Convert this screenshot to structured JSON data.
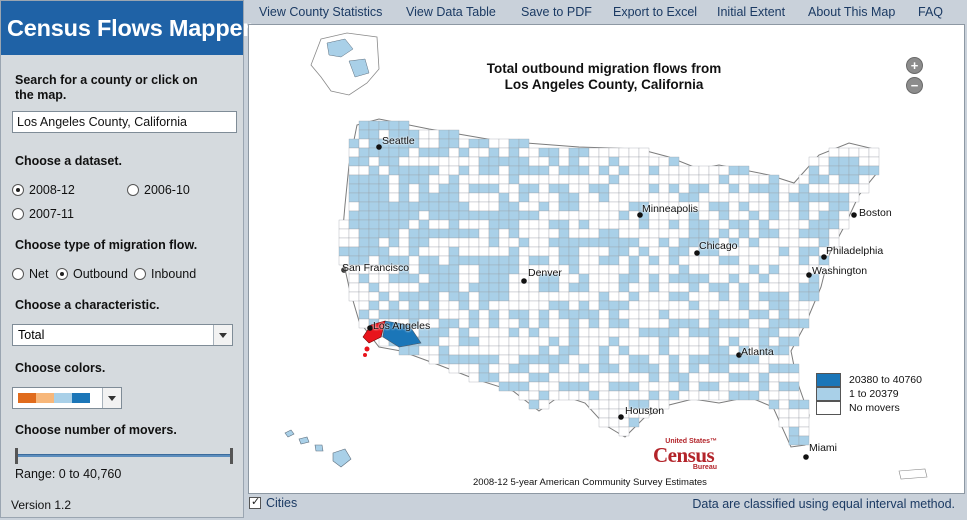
{
  "app": {
    "title": "Census Flows Mapper",
    "version": "Version 1.2"
  },
  "menu": [
    "View County Statistics",
    "View Data Table",
    "Save to PDF",
    "Export to Excel",
    "Initial Extent",
    "About This Map",
    "FAQ"
  ],
  "sidebar": {
    "search_label": "Search for a county or click on the map.",
    "search_value": "Los Angeles County, California",
    "dataset_label": "Choose a dataset.",
    "datasets": [
      "2008-12",
      "2006-10",
      "2007-11"
    ],
    "dataset_selected": "2008-12",
    "flow_label": "Choose type of migration flow.",
    "flows": [
      "Net",
      "Outbound",
      "Inbound"
    ],
    "flow_selected": "Outbound",
    "characteristic_label": "Choose a characteristic.",
    "characteristic_value": "Total",
    "colors_label": "Choose colors.",
    "color_swatches": [
      "#e06b1c",
      "#f7b77a",
      "#a9d0e8",
      "#1b76b8"
    ],
    "movers_label": "Choose number of movers.",
    "range_text": "Range: 0 to 40,760",
    "range": {
      "min": 0,
      "max": 40760
    }
  },
  "map": {
    "title_line1": "Total outbound migration flows from",
    "title_line2": "Los Angeles County, California",
    "zoom_in": "+",
    "zoom_out": "−",
    "cities": [
      "Seattle",
      "San Francisco",
      "Los Angeles",
      "Denver",
      "Minneapolis",
      "Chicago",
      "Boston",
      "Philadelphia",
      "Washington",
      "Atlanta",
      "Houston",
      "Miami"
    ],
    "legend": [
      {
        "label": "20380 to 40760",
        "color": "#1b76b8"
      },
      {
        "label": "1 to 20379",
        "color": "#a9d0e8"
      },
      {
        "label": "No movers",
        "color": "#ffffff"
      }
    ],
    "source": "2008-12 5-year American Community Survey Estimates",
    "logo_small": "United States™",
    "logo_big": "Census",
    "logo_tag": "Bureau",
    "origin_color": "#e8141c"
  },
  "footer": {
    "cities_label": "Cities",
    "cities_checked": true,
    "note": "Data are classified using equal interval method."
  }
}
